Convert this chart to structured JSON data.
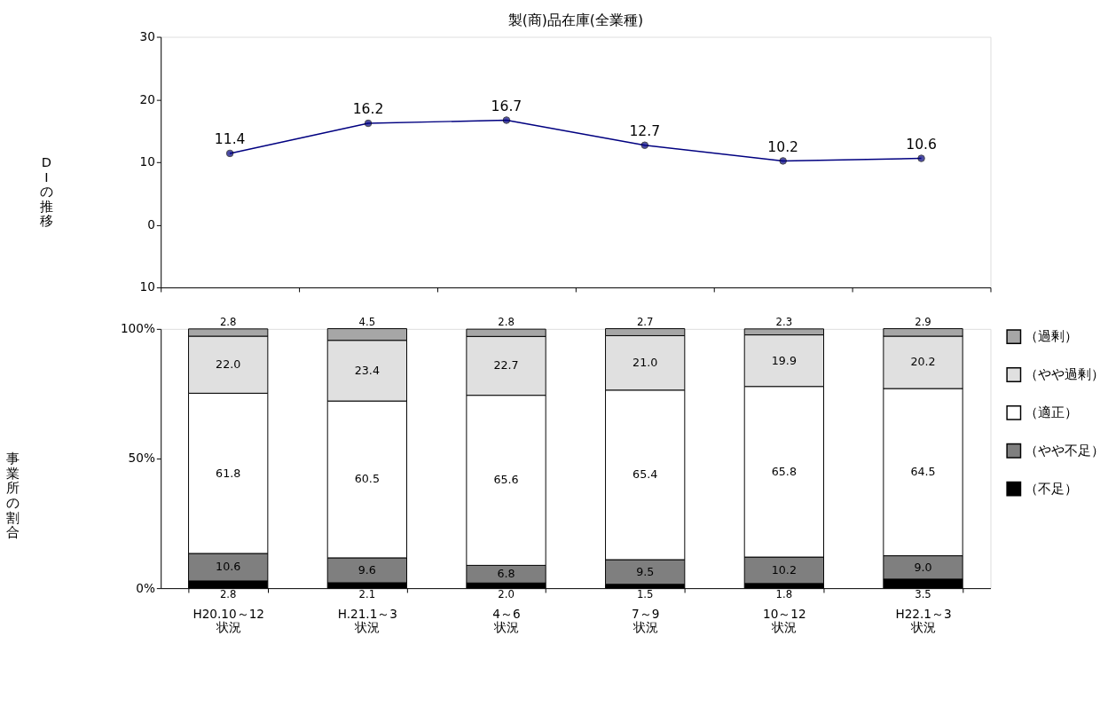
{
  "chart_data": [
    {
      "type": "line",
      "title": "製(商)品在庫(全業種)",
      "ylabel": "DIの推移",
      "categories": [
        null,
        null,
        null,
        null,
        null,
        null
      ],
      "series": [
        {
          "color": "#000080",
          "values": [
            11.4,
            16.2,
            16.7,
            12.7,
            10.2,
            10.6
          ]
        }
      ],
      "ylim": [
        -10,
        30
      ],
      "yticks": [
        {
          "value": -10,
          "label": "10"
        },
        0,
        10,
        20,
        30
      ],
      "marker": "circle",
      "line_style": "solid",
      "data_labels": true,
      "grid": false,
      "tick_labels": "y"
    },
    {
      "type": "bar",
      "stacked": true,
      "ylabel": "事業所の割合",
      "categories": [
        "H20.10～12\n状況",
        "H.21.1～3\n状況",
        "4～6\n状況",
        "7～9\n状況",
        "10～12\n状況",
        "H22.1～3\n状況"
      ],
      "series": [
        {
          "name": "（不足）",
          "color": "#000000",
          "values": [
            2.8,
            2.1,
            2.0,
            1.5,
            1.8,
            3.5
          ],
          "value_labels": [
            "2.8",
            "2.1",
            "2.0",
            "1.5",
            "1.8",
            "3.5"
          ]
        },
        {
          "name": "（やや不足）",
          "color": "#7f7f7f",
          "values": [
            10.6,
            9.6,
            6.8,
            9.5,
            10.2,
            9.0
          ],
          "value_labels": [
            "10.6",
            "9.6",
            "6.8",
            "9.5",
            "10.2",
            "9.0"
          ]
        },
        {
          "name": "（適正）",
          "color": "#ffffff",
          "values": [
            61.8,
            60.5,
            65.6,
            65.4,
            65.8,
            64.5
          ],
          "value_labels": [
            "61.8",
            "60.5",
            "65.6",
            "65.4",
            "65.8",
            "64.5"
          ]
        },
        {
          "name": "（やや過剰）",
          "color": "#e0e0e0",
          "values": [
            22.0,
            23.4,
            22.7,
            21.0,
            19.9,
            20.2
          ],
          "value_labels": [
            "22.0",
            "23.4",
            "22.7",
            "21.0",
            "19.9",
            "20.2"
          ]
        },
        {
          "name": "（過剰）",
          "color": "#a6a6a6",
          "values": [
            2.8,
            4.5,
            2.8,
            2.7,
            2.3,
            2.9
          ],
          "value_labels": [
            "2.8",
            "4.5",
            "2.8",
            "2.7",
            "2.3",
            "2.9"
          ]
        }
      ],
      "ylim": [
        0,
        100
      ],
      "yticks": [
        {
          "value": 0,
          "label": "0%"
        },
        {
          "value": 50,
          "label": "50%"
        },
        {
          "value": 100,
          "label": "100%"
        }
      ],
      "grid": false,
      "legend": "right"
    }
  ]
}
